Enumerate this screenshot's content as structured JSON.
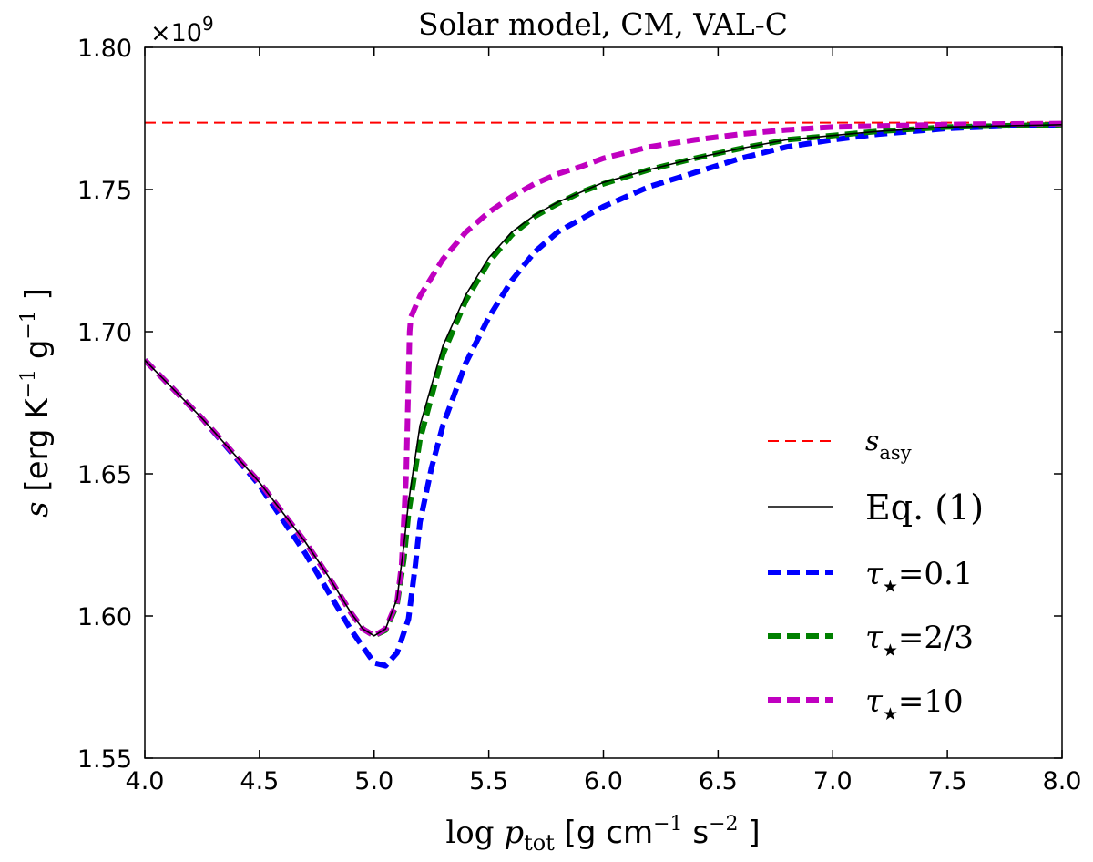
{
  "chart_data": {
    "type": "line",
    "title": "Solar model, CM, VAL-C",
    "xlabel": {
      "prefix": "log ",
      "var": "p",
      "sub": "tot",
      "unit_open": " [g cm",
      "e1": "−1",
      "mid": "  s",
      "e2": "−2",
      "unit_close": " ]"
    },
    "ylabel": {
      "var": "s",
      "unit_open": " [erg K",
      "e1": "−1",
      "mid": "  g",
      "e2": "−1",
      "unit_close": " ]"
    },
    "offset_text": {
      "base": "×10",
      "exp": "9"
    },
    "xlim": [
      4.0,
      8.0
    ],
    "ylim": [
      1.55,
      1.8
    ],
    "xticks": [
      4.0,
      4.5,
      5.0,
      5.5,
      6.0,
      6.5,
      7.0,
      7.5,
      8.0
    ],
    "xtick_labels": [
      "4.0",
      "4.5",
      "5.0",
      "5.5",
      "6.0",
      "6.5",
      "7.0",
      "7.5",
      "8.0"
    ],
    "yticks": [
      1.55,
      1.6,
      1.65,
      1.7,
      1.75,
      1.8
    ],
    "ytick_labels": [
      "1.55",
      "1.60",
      "1.65",
      "1.70",
      "1.75",
      "1.80"
    ],
    "y_scale_note": "y values in units of 1e9 erg K^-1 g^-1",
    "legend_position": "lower-right",
    "series": [
      {
        "name": "s_asy",
        "legend": {
          "var": "s",
          "sub": "asy"
        },
        "color": "#ff0000",
        "style": "dash-thin",
        "points": [
          [
            4.0,
            1.7735
          ],
          [
            8.0,
            1.7735
          ]
        ]
      },
      {
        "name": "Eq. (1)",
        "legend": {
          "text": "Eq. (1)"
        },
        "color": "#000000",
        "style": "solid-thin",
        "points": [
          [
            4.0,
            1.69
          ],
          [
            4.25,
            1.6695
          ],
          [
            4.5,
            1.647
          ],
          [
            4.7,
            1.626
          ],
          [
            4.8,
            1.614
          ],
          [
            4.9,
            1.601
          ],
          [
            4.95,
            1.5955
          ],
          [
            5.0,
            1.593
          ],
          [
            5.05,
            1.5955
          ],
          [
            5.1,
            1.606
          ],
          [
            5.13,
            1.625
          ],
          [
            5.15,
            1.64
          ],
          [
            5.2,
            1.667
          ],
          [
            5.3,
            1.695
          ],
          [
            5.4,
            1.713
          ],
          [
            5.5,
            1.726
          ],
          [
            5.6,
            1.735
          ],
          [
            5.7,
            1.741
          ],
          [
            5.8,
            1.7455
          ],
          [
            5.9,
            1.749
          ],
          [
            6.0,
            1.7525
          ],
          [
            6.2,
            1.757
          ],
          [
            6.4,
            1.761
          ],
          [
            6.6,
            1.7645
          ],
          [
            6.8,
            1.7675
          ],
          [
            7.0,
            1.769
          ],
          [
            7.2,
            1.7705
          ],
          [
            7.5,
            1.772
          ],
          [
            7.8,
            1.7725
          ],
          [
            8.0,
            1.7728
          ]
        ]
      },
      {
        "name": "tau=0.1",
        "legend": {
          "var": "τ",
          "sub": "★",
          "text": "=0.1"
        },
        "color": "#0000ff",
        "style": "dash-thick",
        "points": [
          [
            4.0,
            1.69
          ],
          [
            4.25,
            1.6695
          ],
          [
            4.5,
            1.646
          ],
          [
            4.7,
            1.622
          ],
          [
            4.8,
            1.6085
          ],
          [
            4.9,
            1.595
          ],
          [
            5.0,
            1.5835
          ],
          [
            5.05,
            1.5825
          ],
          [
            5.1,
            1.587
          ],
          [
            5.15,
            1.599
          ],
          [
            5.18,
            1.618
          ],
          [
            5.2,
            1.633
          ],
          [
            5.25,
            1.652
          ],
          [
            5.3,
            1.667
          ],
          [
            5.4,
            1.689
          ],
          [
            5.5,
            1.705
          ],
          [
            5.6,
            1.718
          ],
          [
            5.7,
            1.728
          ],
          [
            5.8,
            1.735
          ],
          [
            5.9,
            1.7395
          ],
          [
            6.0,
            1.744
          ],
          [
            6.2,
            1.751
          ],
          [
            6.4,
            1.756
          ],
          [
            6.6,
            1.761
          ],
          [
            6.8,
            1.765
          ],
          [
            7.0,
            1.7675
          ],
          [
            7.2,
            1.7695
          ],
          [
            7.5,
            1.7715
          ],
          [
            7.8,
            1.7725
          ],
          [
            8.0,
            1.7728
          ]
        ]
      },
      {
        "name": "tau=2/3",
        "legend": {
          "var": "τ",
          "sub": "★",
          "text": "=2/3"
        },
        "color": "#008000",
        "style": "dash-thick",
        "points": [
          [
            4.0,
            1.69
          ],
          [
            4.25,
            1.6695
          ],
          [
            4.5,
            1.647
          ],
          [
            4.7,
            1.626
          ],
          [
            4.8,
            1.614
          ],
          [
            4.9,
            1.601
          ],
          [
            4.95,
            1.5955
          ],
          [
            5.0,
            1.593
          ],
          [
            5.05,
            1.595
          ],
          [
            5.1,
            1.604
          ],
          [
            5.13,
            1.62
          ],
          [
            5.15,
            1.636
          ],
          [
            5.2,
            1.662
          ],
          [
            5.3,
            1.692
          ],
          [
            5.4,
            1.711
          ],
          [
            5.5,
            1.7245
          ],
          [
            5.6,
            1.734
          ],
          [
            5.7,
            1.7405
          ],
          [
            5.8,
            1.745
          ],
          [
            5.9,
            1.749
          ],
          [
            6.0,
            1.752
          ],
          [
            6.2,
            1.757
          ],
          [
            6.4,
            1.761
          ],
          [
            6.6,
            1.7645
          ],
          [
            6.8,
            1.7675
          ],
          [
            7.0,
            1.769
          ],
          [
            7.2,
            1.7705
          ],
          [
            7.5,
            1.772
          ],
          [
            7.8,
            1.7725
          ],
          [
            8.0,
            1.7728
          ]
        ]
      },
      {
        "name": "tau=10",
        "legend": {
          "var": "τ",
          "sub": "★",
          "text": "=10"
        },
        "color": "#c000c0",
        "style": "dash-thick",
        "points": [
          [
            4.0,
            1.69
          ],
          [
            4.25,
            1.6695
          ],
          [
            4.5,
            1.647
          ],
          [
            4.7,
            1.626
          ],
          [
            4.8,
            1.614
          ],
          [
            4.9,
            1.601
          ],
          [
            4.95,
            1.5955
          ],
          [
            5.0,
            1.593
          ],
          [
            5.05,
            1.5955
          ],
          [
            5.1,
            1.605
          ],
          [
            5.12,
            1.618
          ],
          [
            5.14,
            1.65
          ],
          [
            5.155,
            1.7
          ],
          [
            5.16,
            1.705
          ],
          [
            5.2,
            1.7125
          ],
          [
            5.3,
            1.7255
          ],
          [
            5.4,
            1.735
          ],
          [
            5.5,
            1.742
          ],
          [
            5.6,
            1.7475
          ],
          [
            5.7,
            1.752
          ],
          [
            5.8,
            1.7555
          ],
          [
            5.9,
            1.758
          ],
          [
            6.0,
            1.761
          ],
          [
            6.2,
            1.765
          ],
          [
            6.4,
            1.7675
          ],
          [
            6.6,
            1.7695
          ],
          [
            6.8,
            1.771
          ],
          [
            7.0,
            1.772
          ],
          [
            7.3,
            1.7725
          ],
          [
            7.6,
            1.773
          ],
          [
            8.0,
            1.7732
          ]
        ]
      }
    ]
  }
}
